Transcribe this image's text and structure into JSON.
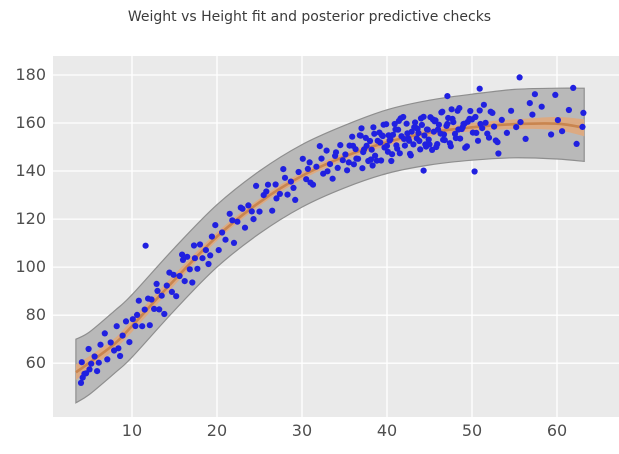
{
  "title": "Weight vs Height fit and posterior predictive checks",
  "style": {
    "plot_bg": "#eaeaea",
    "grid_color": "#ffffff",
    "tick_color": "#4f4f4f",
    "title_color": "#3b3b3b"
  },
  "chart_data": {
    "type": "scatter",
    "title": "Weight vs Height fit and posterior predictive checks",
    "xlabel": "",
    "ylabel": "",
    "x_ticks": [
      10,
      20,
      30,
      40,
      50,
      60
    ],
    "y_ticks": [
      60,
      80,
      100,
      120,
      140,
      160,
      180
    ],
    "xlim": [
      0.71,
      67.29
    ],
    "ylim": [
      37.6,
      187.9
    ],
    "grid": true,
    "legend": false,
    "bands": [
      {
        "name": "posterior-predictive-hdi",
        "fill": "#b9b9b9",
        "edge": "#8e8e8e",
        "x": [
          3.4,
          5,
          8,
          10,
          15,
          20,
          25,
          30,
          35,
          40,
          45,
          50,
          55,
          60,
          63.2
        ],
        "lo": [
          43.5,
          47,
          56,
          62.5,
          82,
          100,
          114,
          125,
          133,
          139,
          142.5,
          144.5,
          145.5,
          145,
          144
        ],
        "hi": [
          70,
          73,
          82,
          88.5,
          108,
          126,
          140,
          151,
          159,
          165.5,
          169.5,
          172,
          174,
          174.5,
          174.5
        ]
      },
      {
        "name": "mean-hdi",
        "fill": "#dcaa82",
        "edge": "none",
        "x": [
          3.4,
          5,
          8,
          10,
          15,
          20,
          25,
          30,
          35,
          40,
          45,
          50,
          55,
          60,
          63.2
        ],
        "lo": [
          53,
          57.5,
          66,
          73,
          92.5,
          111,
          125.5,
          136.5,
          144.5,
          150.5,
          154.5,
          156.5,
          157.5,
          157,
          154.5
        ],
        "hi": [
          59.5,
          63,
          70.5,
          78,
          97,
          114.5,
          128.5,
          139.5,
          147.5,
          153.5,
          157.5,
          160,
          161.5,
          162.5,
          161.5
        ]
      }
    ],
    "mean_line": {
      "name": "posterior-mean-fit",
      "color": "#c9854f",
      "width": 2.6,
      "x": [
        3.4,
        5,
        8,
        10,
        15,
        20,
        25,
        30,
        35,
        40,
        45,
        50,
        55,
        60,
        63.2
      ],
      "y": [
        56.2,
        60.2,
        68.2,
        75.5,
        94.7,
        112.7,
        127,
        138,
        146,
        152,
        156,
        158.2,
        159.5,
        159.7,
        158
      ]
    },
    "observations": {
      "name": "height-weight-samples",
      "color": "#2020e0",
      "marker_radius": 3.1,
      "points": [
        [
          4.1,
          60.4
        ],
        [
          4.4,
          55.6
        ],
        [
          4.9,
          65.9
        ],
        [
          5.2,
          59.8
        ],
        [
          5.6,
          62.8
        ],
        [
          5.9,
          56.7
        ],
        [
          6.3,
          67.7
        ],
        [
          6.8,
          72.4
        ],
        [
          7.1,
          61.6
        ],
        [
          7.5,
          68.6
        ],
        [
          7.9,
          65.3
        ],
        [
          8.2,
          75.4
        ],
        [
          8.6,
          63.0
        ],
        [
          8.9,
          71.5
        ],
        [
          9.3,
          77.4
        ],
        [
          9.7,
          68.8
        ],
        [
          10.1,
          78.3
        ],
        [
          10.4,
          75.5
        ],
        [
          10.8,
          86.0
        ],
        [
          11.2,
          75.4
        ],
        [
          11.5,
          82.3
        ],
        [
          11.9,
          86.9
        ],
        [
          12.1,
          75.8
        ],
        [
          12.3,
          86.5
        ],
        [
          12.6,
          82.6
        ],
        [
          12.9,
          93.0
        ],
        [
          13.2,
          82.4
        ],
        [
          13.5,
          88.1
        ],
        [
          13.8,
          80.5
        ],
        [
          14.1,
          92.3
        ],
        [
          14.4,
          97.7
        ],
        [
          14.7,
          89.7
        ],
        [
          14.9,
          96.8
        ],
        [
          15.2,
          87.9
        ],
        [
          15.6,
          96.3
        ],
        [
          15.9,
          105.2
        ],
        [
          16.2,
          94.2
        ],
        [
          16.5,
          104.3
        ],
        [
          16.8,
          99.1
        ],
        [
          17.1,
          93.6
        ],
        [
          17.4,
          103.7
        ],
        [
          17.7,
          99.3
        ],
        [
          18.0,
          109.4
        ],
        [
          18.3,
          103.7
        ],
        [
          18.7,
          107.1
        ],
        [
          19.0,
          101.3
        ],
        [
          19.4,
          112.7
        ],
        [
          19.8,
          117.5
        ],
        [
          20.2,
          107.1
        ],
        [
          20.6,
          114.4
        ],
        [
          21.0,
          111.4
        ],
        [
          21.5,
          122.2
        ],
        [
          22.0,
          110.1
        ],
        [
          22.4,
          118.9
        ],
        [
          22.8,
          124.8
        ],
        [
          23.3,
          116.4
        ],
        [
          23.7,
          125.7
        ],
        [
          24.1,
          123.2
        ],
        [
          24.6,
          133.8
        ],
        [
          25.0,
          123.1
        ],
        [
          25.5,
          130.0
        ],
        [
          26.0,
          134.3
        ],
        [
          26.5,
          123.5
        ],
        [
          26.9,
          134.4
        ],
        [
          27.4,
          130.5
        ],
        [
          27.8,
          140.8
        ],
        [
          28.3,
          130.2
        ],
        [
          28.7,
          135.6
        ],
        [
          29.2,
          128.0
        ],
        [
          29.6,
          139.6
        ],
        [
          30.1,
          145.1
        ],
        [
          30.5,
          136.6
        ],
        [
          30.9,
          143.6
        ],
        [
          31.3,
          134.3
        ],
        [
          31.7,
          141.8
        ],
        [
          32.1,
          150.4
        ],
        [
          32.5,
          138.9
        ],
        [
          32.9,
          148.5
        ],
        [
          33.3,
          142.9
        ],
        [
          33.6,
          136.8
        ],
        [
          33.9,
          146.3
        ],
        [
          34.2,
          141.3
        ],
        [
          34.5,
          150.8
        ],
        [
          34.8,
          144.5
        ],
        [
          35.1,
          146.9
        ],
        [
          35.3,
          140.3
        ],
        [
          35.6,
          150.6
        ],
        [
          35.9,
          154.3
        ],
        [
          36.1,
          142.8
        ],
        [
          36.3,
          149.1
        ],
        [
          36.6,
          145.1
        ],
        [
          36.9,
          154.7
        ],
        [
          37.1,
          141.2
        ],
        [
          37.3,
          149.0
        ],
        [
          37.5,
          153.8
        ],
        [
          37.8,
          144.2
        ],
        [
          38.0,
          152.5
        ],
        [
          38.2,
          148.9
        ],
        [
          38.4,
          158.2
        ],
        [
          38.6,
          146.4
        ],
        [
          38.9,
          152.6
        ],
        [
          39.1,
          156.0
        ],
        [
          39.3,
          144.4
        ],
        [
          39.5,
          154.6
        ],
        [
          39.7,
          149.8
        ],
        [
          39.9,
          159.5
        ],
        [
          40.1,
          148.0
        ],
        [
          40.3,
          152.7
        ],
        [
          40.5,
          144.2
        ],
        [
          40.7,
          155.1
        ],
        [
          40.9,
          159.6
        ],
        [
          41.1,
          150.7
        ],
        [
          41.3,
          157.2
        ],
        [
          41.5,
          147.4
        ],
        [
          41.7,
          154.5
        ],
        [
          41.9,
          162.5
        ],
        [
          42.1,
          150.6
        ],
        [
          42.3,
          159.7
        ],
        [
          42.5,
          153.6
        ],
        [
          42.7,
          147.2
        ],
        [
          42.9,
          156.4
        ],
        [
          43.1,
          151.1
        ],
        [
          43.3,
          160.2
        ],
        [
          43.5,
          153.6
        ],
        [
          43.7,
          155.8
        ],
        [
          43.9,
          149.0
        ],
        [
          44.1,
          159.2
        ],
        [
          44.3,
          162.6
        ],
        [
          44.5,
          151.1
        ],
        [
          44.7,
          157.3
        ],
        [
          44.9,
          153.1
        ],
        [
          45.1,
          162.4
        ],
        [
          45.3,
          148.8
        ],
        [
          45.5,
          156.4
        ],
        [
          45.7,
          161.1
        ],
        [
          45.9,
          151.2
        ],
        [
          46.1,
          159.3
        ],
        [
          46.3,
          155.6
        ],
        [
          46.5,
          164.7
        ],
        [
          46.8,
          152.9
        ],
        [
          47.0,
          158.8
        ],
        [
          47.2,
          162.1
        ],
        [
          47.5,
          150.3
        ],
        [
          47.8,
          160.4
        ],
        [
          48.0,
          155.5
        ],
        [
          48.3,
          165.1
        ],
        [
          48.6,
          153.5
        ],
        [
          48.9,
          158.3
        ],
        [
          49.2,
          149.7
        ],
        [
          49.5,
          160.5
        ],
        [
          49.8,
          165.0
        ],
        [
          50.1,
          156.0
        ],
        [
          50.4,
          162.5
        ],
        [
          50.7,
          152.6
        ],
        [
          51.0,
          159.6
        ],
        [
          51.4,
          167.6
        ],
        [
          51.8,
          155.6
        ],
        [
          52.2,
          164.7
        ],
        [
          52.6,
          158.5
        ],
        [
          53.0,
          152.0
        ],
        [
          53.5,
          161.3
        ],
        [
          54.1,
          155.9
        ],
        [
          54.6,
          165.1
        ],
        [
          55.2,
          158.3
        ],
        [
          55.7,
          160.4
        ],
        [
          56.3,
          153.4
        ],
        [
          57.1,
          163.5
        ],
        [
          58.2,
          166.8
        ],
        [
          59.3,
          155.2
        ],
        [
          60.1,
          161.2
        ],
        [
          60.6,
          156.6
        ],
        [
          61.4,
          165.4
        ],
        [
          62.3,
          151.3
        ],
        [
          63.0,
          158.4
        ],
        [
          55.6,
          179.0
        ],
        [
          50.3,
          139.8
        ],
        [
          44.3,
          140.2
        ],
        [
          61.9,
          174.6
        ],
        [
          63.1,
          164.2
        ],
        [
          59.8,
          171.7
        ],
        [
          57.4,
          172.0
        ],
        [
          56.8,
          168.3
        ],
        [
          53.1,
          147.3
        ],
        [
          4.2,
          54.0
        ],
        [
          4.6,
          55.8
        ],
        [
          11.6,
          108.9
        ],
        [
          17.3,
          109.0
        ],
        [
          4.0,
          51.8
        ],
        [
          50.9,
          174.3
        ],
        [
          47.1,
          171.2
        ],
        [
          37.0,
          157.8
        ],
        [
          36.0,
          150.5
        ],
        [
          36.4,
          145.2
        ],
        [
          36.8,
          154.9
        ],
        [
          37.2,
          147.9
        ],
        [
          37.6,
          150.5
        ],
        [
          38.1,
          144.8
        ],
        [
          38.5,
          155.5
        ],
        [
          38.8,
          144.3
        ],
        [
          39.2,
          151.9
        ],
        [
          39.6,
          159.3
        ],
        [
          40.0,
          150.5
        ],
        [
          40.2,
          154.9
        ],
        [
          40.6,
          147.0
        ],
        [
          41.0,
          157.3
        ],
        [
          41.2,
          149.3
        ],
        [
          41.6,
          161.9
        ],
        [
          42.0,
          153.4
        ],
        [
          42.4,
          155.7
        ],
        [
          42.8,
          146.5
        ],
        [
          43.2,
          158.2
        ],
        [
          43.4,
          158.0
        ],
        [
          43.8,
          152.5
        ],
        [
          44.0,
          161.9
        ],
        [
          44.4,
          154.8
        ],
        [
          44.8,
          157.2
        ],
        [
          45.0,
          151.1
        ],
        [
          45.4,
          161.5
        ],
        [
          45.8,
          150.0
        ],
        [
          46.0,
          157.3
        ],
        [
          46.4,
          164.4
        ],
        [
          46.7,
          155.2
        ],
        [
          47.1,
          159.6
        ],
        [
          47.4,
          151.6
        ],
        [
          47.7,
          161.7
        ],
        [
          48.1,
          153.7
        ],
        [
          48.5,
          166.2
        ],
        [
          48.8,
          157.5
        ],
        [
          49.1,
          159.7
        ],
        [
          49.4,
          150.3
        ],
        [
          49.7,
          161.7
        ],
        [
          50.0,
          161.5
        ],
        [
          50.5,
          155.9
        ],
        [
          50.9,
          165.2
        ],
        [
          51.2,
          157.9
        ],
        [
          51.6,
          160.1
        ],
        [
          52.0,
          153.9
        ],
        [
          52.4,
          164.2
        ],
        [
          52.8,
          152.7
        ],
        [
          40.4,
          153.2
        ],
        [
          41.4,
          160.9
        ],
        [
          42.6,
          152.6
        ],
        [
          43.6,
          157.6
        ],
        [
          44.6,
          150.2
        ],
        [
          45.6,
          160.7
        ],
        [
          46.6,
          153.0
        ],
        [
          47.6,
          165.7
        ],
        [
          48.4,
          157.3
        ],
        [
          49.0,
          159.6
        ],
        [
          38.3,
          142.3
        ],
        [
          39.4,
          154.9
        ],
        [
          21.8,
          119.5
        ],
        [
          23.0,
          124.3
        ],
        [
          24.3,
          120.0
        ],
        [
          25.8,
          131.5
        ],
        [
          27.0,
          128.6
        ],
        [
          28.0,
          137.2
        ],
        [
          29.0,
          133.0
        ],
        [
          30.7,
          140.9
        ],
        [
          31.0,
          135.2
        ],
        [
          32.3,
          145.2
        ],
        [
          33.0,
          139.9
        ],
        [
          34.0,
          147.8
        ],
        [
          35.5,
          143.6
        ],
        [
          19.2,
          104.9
        ],
        [
          16.0,
          103.0
        ],
        [
          13.0,
          90.1
        ],
        [
          10.6,
          80.1
        ],
        [
          8.4,
          66.2
        ],
        [
          6.1,
          60.2
        ],
        [
          5.0,
          57.4
        ]
      ]
    }
  }
}
